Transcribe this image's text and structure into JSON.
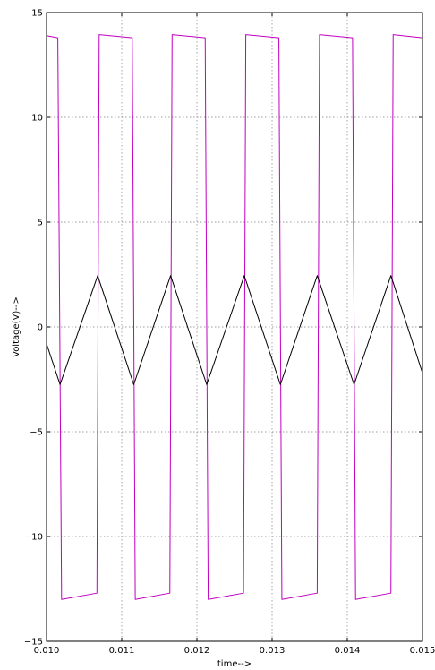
{
  "chart_data": {
    "type": "line",
    "title": "",
    "xlabel": "time-->",
    "ylabel": "Voltage(V)-->",
    "xlim": [
      0.01,
      0.015
    ],
    "ylim": [
      -15,
      15
    ],
    "x_ticks": [
      0.01,
      0.011,
      0.012,
      0.013,
      0.014,
      0.015
    ],
    "x_tick_labels": [
      "0.010",
      "0.011",
      "0.012",
      "0.013",
      "0.014",
      "0.015"
    ],
    "y_ticks": [
      -15,
      -10,
      -5,
      0,
      5,
      10,
      15
    ],
    "y_tick_labels": [
      "−15",
      "−10",
      "−5",
      "0",
      "5",
      "10",
      "15"
    ],
    "grid": true,
    "series": [
      {
        "color": "#c000c0",
        "x": [
          0.01,
          0.01015,
          0.0102,
          0.01067,
          0.0107,
          0.01114,
          0.01118,
          0.01164,
          0.01167,
          0.01211,
          0.01215,
          0.01262,
          0.01265,
          0.01309,
          0.01313,
          0.0136,
          0.01363,
          0.01407,
          0.01411,
          0.01458,
          0.01461,
          0.015
        ],
        "y": [
          13.9,
          13.8,
          -13.0,
          -12.7,
          13.95,
          13.8,
          -13.0,
          -12.7,
          13.95,
          13.8,
          -13.0,
          -12.7,
          13.95,
          13.8,
          -13.0,
          -12.7,
          13.95,
          13.8,
          -13.0,
          -12.7,
          13.95,
          13.8
        ]
      },
      {
        "color": "#000000",
        "x": [
          0.01,
          0.01018,
          0.01068,
          0.01116,
          0.01165,
          0.01213,
          0.01263,
          0.01311,
          0.0136,
          0.01409,
          0.01458,
          0.015
        ],
        "y": [
          -0.8,
          -2.75,
          2.45,
          -2.75,
          2.45,
          -2.75,
          2.45,
          -2.75,
          2.45,
          -2.75,
          2.45,
          -2.2
        ]
      }
    ]
  }
}
